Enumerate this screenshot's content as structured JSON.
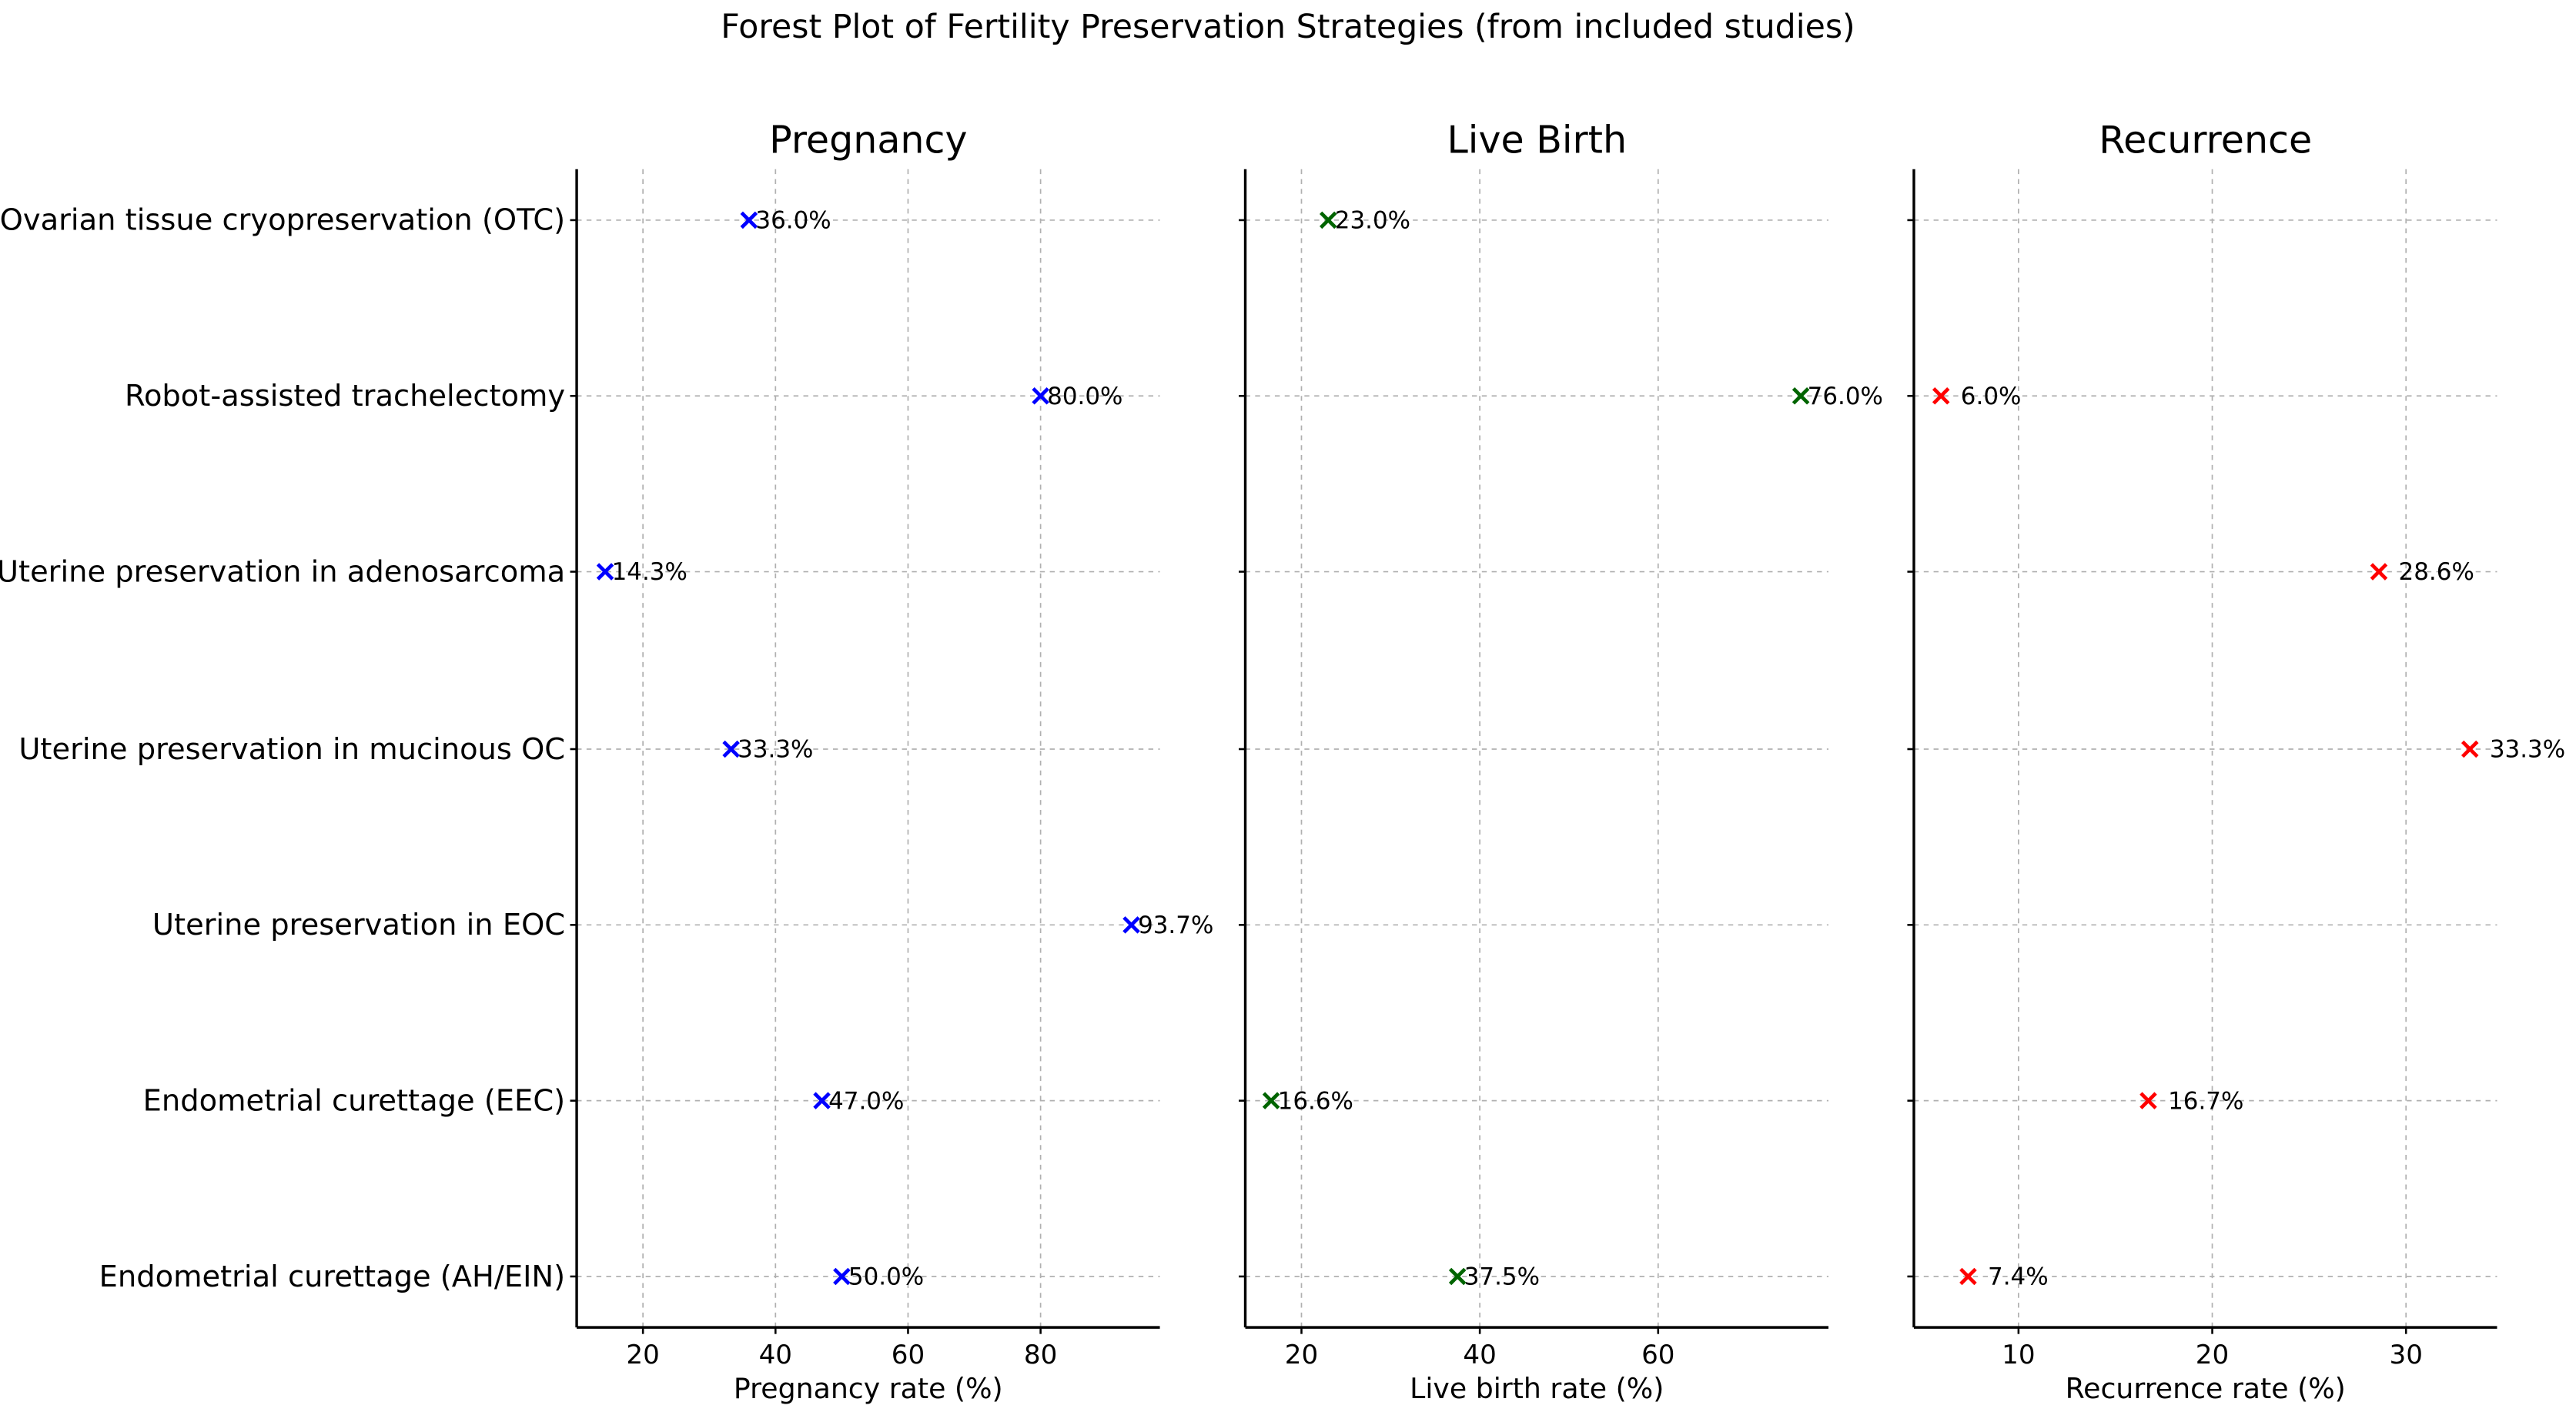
{
  "chart_data": {
    "type": "scatter",
    "title": "Forest Plot of Fertility Preservation Strategies (from included studies)",
    "categories": [
      "Ovarian tissue cryopreservation (OTC)",
      "Robot-assisted trachelectomy",
      "Uterine preservation in adenosarcoma",
      "Uterine preservation in mucinous OC",
      "Uterine preservation in EOC",
      "Endometrial curettage (EEC)",
      "Endometrial curettage (AH/EIN)"
    ],
    "panels": [
      {
        "title": "Pregnancy",
        "xlabel": "Pregnancy rate (%)",
        "color": "#0000ff",
        "xlim": [
          10,
          98
        ],
        "xticks": [
          20,
          40,
          60,
          80
        ],
        "values": [
          36.0,
          80.0,
          14.3,
          33.3,
          93.7,
          47.0,
          50.0
        ],
        "labels": [
          "36.0%",
          "80.0%",
          "14.3%",
          "33.3%",
          "93.7%",
          "47.0%",
          "50.0%"
        ]
      },
      {
        "title": "Live Birth",
        "xlabel": "Live birth rate (%)",
        "color": "#006400",
        "xlim": [
          13.7,
          79.1
        ],
        "xticks": [
          20,
          40,
          60
        ],
        "values": [
          23.0,
          76.0,
          null,
          null,
          null,
          16.6,
          37.5
        ],
        "labels": [
          "23.0%",
          "76.0%",
          null,
          null,
          null,
          "16.6%",
          "37.5%"
        ]
      },
      {
        "title": "Recurrence",
        "xlabel": "Recurrence rate (%)",
        "color": "#ff0000",
        "xlim": [
          4.6,
          34.7
        ],
        "xticks": [
          10,
          20,
          30
        ],
        "values": [
          null,
          6.0,
          28.6,
          33.3,
          null,
          16.7,
          7.4
        ],
        "labels": [
          null,
          "6.0%",
          "28.6%",
          "33.3%",
          null,
          "16.7%",
          "7.4%"
        ]
      }
    ],
    "grid": true
  }
}
